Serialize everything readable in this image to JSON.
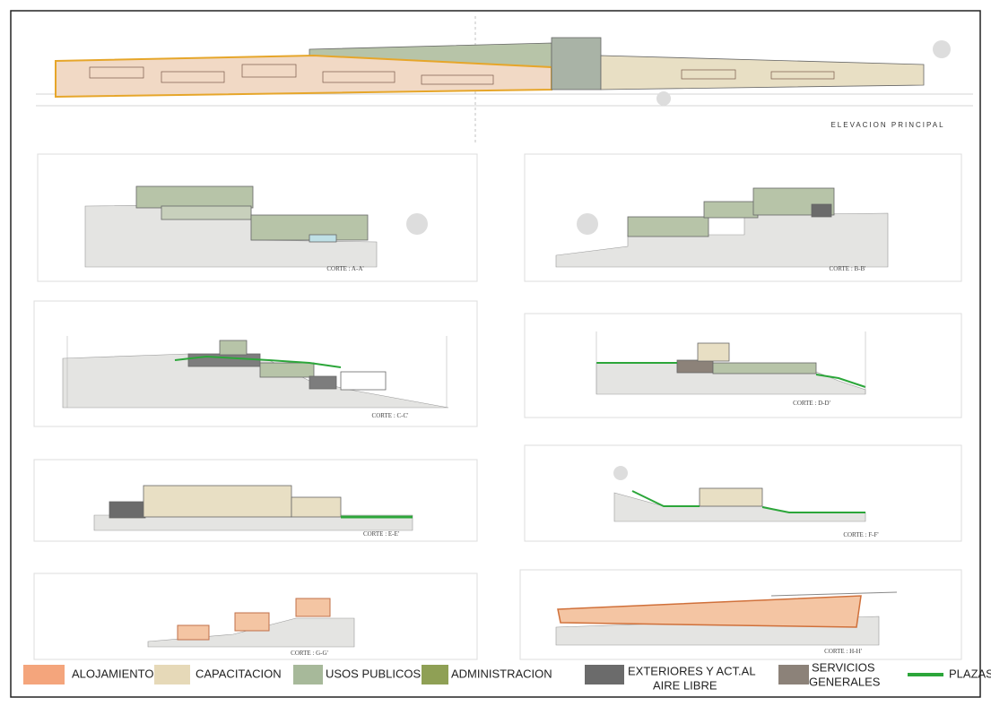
{
  "title": "ELEVACION PRINCIPAL",
  "sections": [
    "CORTE : A-A'",
    "CORTE : B-B'",
    "CORTE : C-C'",
    "CORTE : D-D'",
    "CORTE : E-E'",
    "CORTE : F-F'",
    "CORTE : G-G'",
    "CORTE : H-H'"
  ],
  "legend": [
    {
      "lines": [
        "ALOJAMIENTO"
      ]
    },
    {
      "lines": [
        "CAPACITACION"
      ]
    },
    {
      "lines": [
        "USOS PUBLICOS"
      ]
    },
    {
      "lines": [
        "ADMINISTRACION"
      ]
    },
    {
      "lines": [
        "EXTERIORES Y ACT.AL",
        "AIRE LIBRE"
      ]
    },
    {
      "lines": [
        "SERVICIOS",
        "GENERALES"
      ]
    },
    {
      "lines": [
        "PLAZAS"
      ]
    }
  ]
}
